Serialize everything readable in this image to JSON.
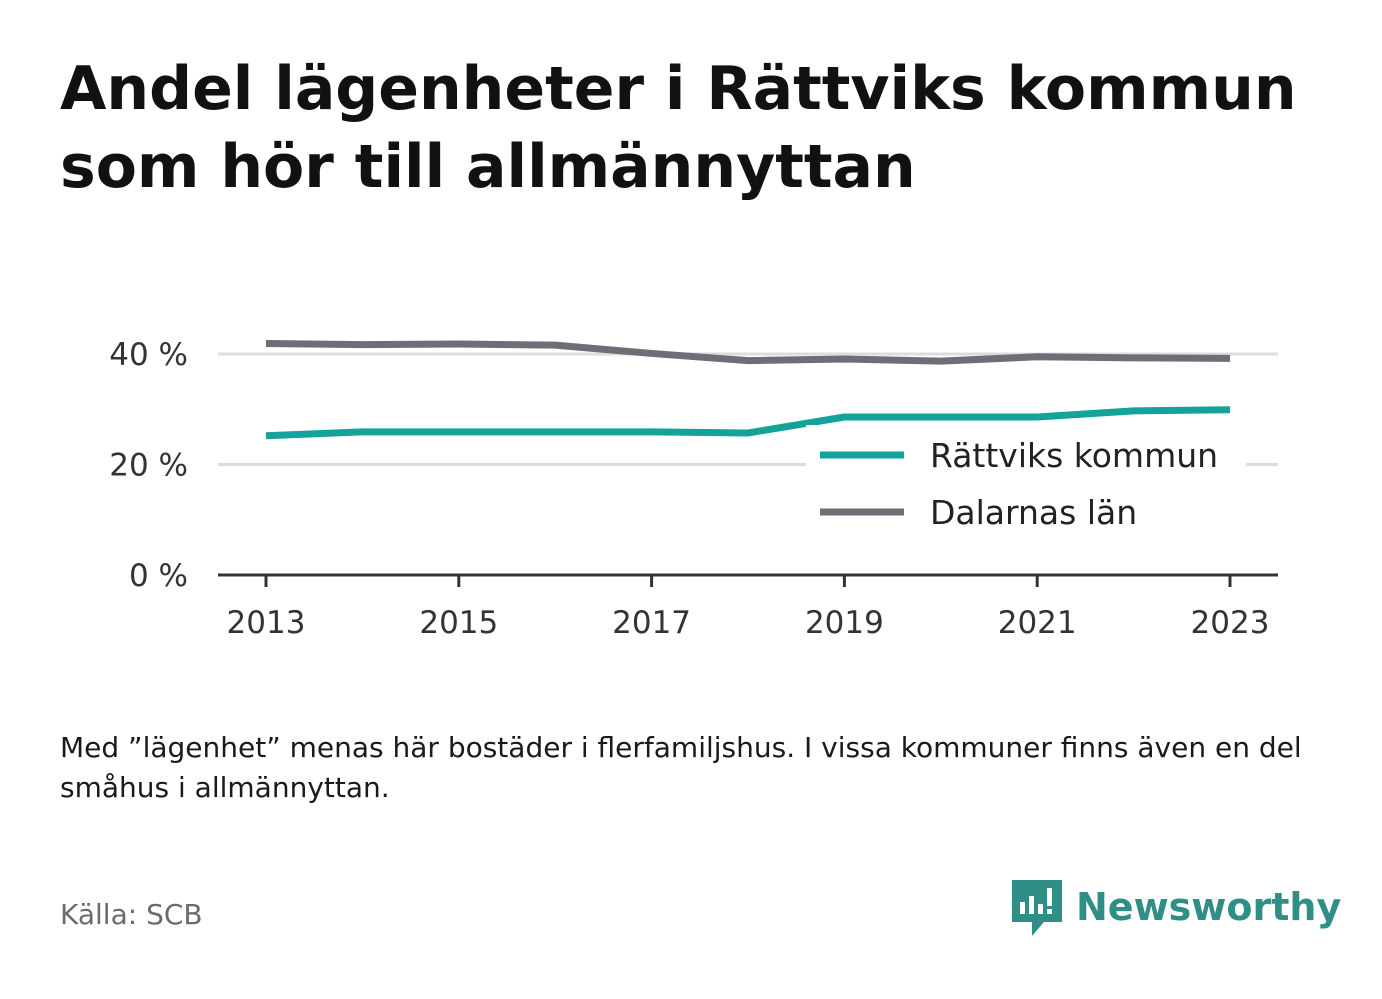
{
  "title": "Andel lägenheter i Rättviks kommun som hör till allmännyttan",
  "note": "Med ”lägenhet” menas här bostäder i flerfamiljshus. I vissa kommuner finns även en del småhus i allmännyttan.",
  "source": "Källa: SCB",
  "brand": {
    "name": "Newsworthy",
    "icon": "newsworthy-logo-icon",
    "color": "#2f8f86"
  },
  "chart_data": {
    "type": "line",
    "x": [
      2013,
      2014,
      2015,
      2016,
      2017,
      2018,
      2019,
      2020,
      2021,
      2022,
      2023
    ],
    "x_tick_labels": [
      "2013",
      "2015",
      "2017",
      "2019",
      "2021",
      "2023"
    ],
    "x_ticks": [
      2013,
      2015,
      2017,
      2019,
      2021,
      2023
    ],
    "y_ticks": [
      0,
      20,
      40
    ],
    "y_tick_labels": [
      "0 %",
      "20 %",
      "40 %"
    ],
    "ylim": [
      0,
      42
    ],
    "grid": true,
    "legend_position": "right",
    "series": [
      {
        "name": "Rättviks kommun",
        "color": "#13a39a",
        "values": [
          25.2,
          25.9,
          25.9,
          25.9,
          25.9,
          25.7,
          28.6,
          28.6,
          28.6,
          29.7,
          29.9
        ]
      },
      {
        "name": "Dalarnas län",
        "color": "#6e6e76",
        "values": [
          41.9,
          41.7,
          41.8,
          41.6,
          40.1,
          38.8,
          39.1,
          38.7,
          39.5,
          39.3,
          39.2
        ]
      }
    ]
  }
}
